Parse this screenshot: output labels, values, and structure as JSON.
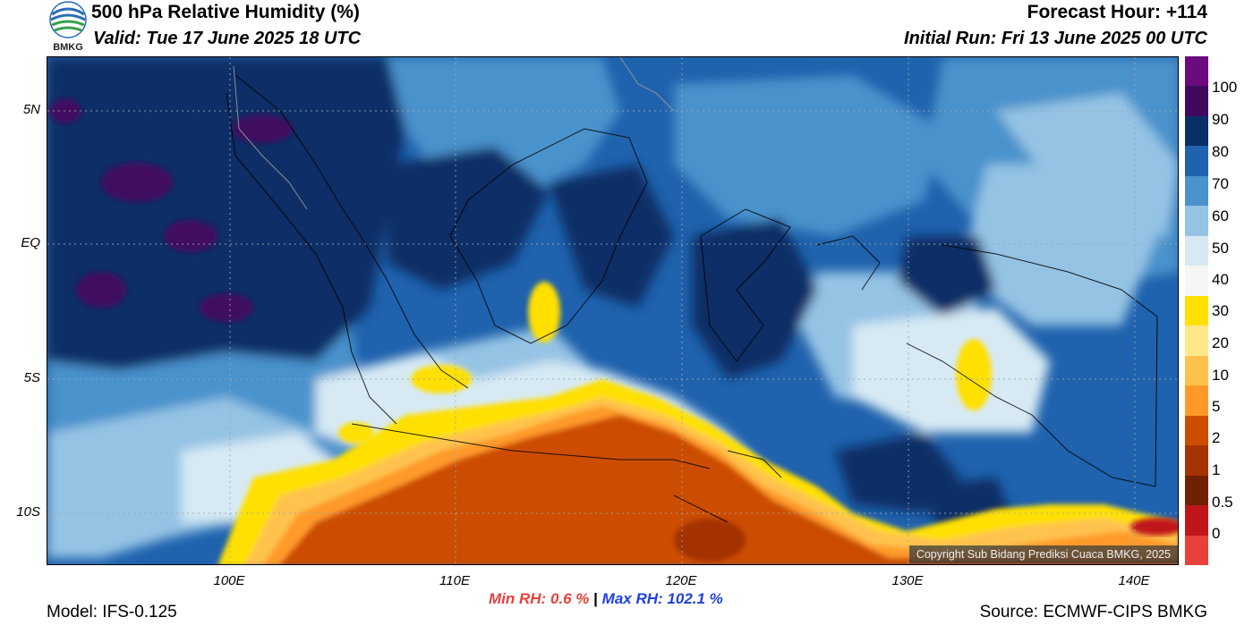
{
  "header": {
    "title": "500 hPa Relative Humidity (%)",
    "valid": "Valid: Tue 17 June 2025 18 UTC",
    "forecast_hour": "Forecast Hour: +114",
    "initial_run": "Initial Run: Fri 13 June 2025 00 UTC",
    "logo_text": "BMKG"
  },
  "map": {
    "lat_labels": [
      "5N",
      "EQ",
      "5S",
      "10S"
    ],
    "lon_labels": [
      "100E",
      "110E",
      "120E",
      "130E",
      "140E"
    ],
    "copyright": "Copyright Sub Bidang Prediksi Cuaca BMKG, 2025"
  },
  "colorbar": {
    "labels": [
      "100",
      "90",
      "80",
      "70",
      "60",
      "50",
      "40",
      "30",
      "20",
      "10",
      "5",
      "2",
      "1",
      "0.5",
      "0"
    ],
    "colors": [
      "#6b0b7f",
      "#3f0a5e",
      "#0a2f66",
      "#1f62ad",
      "#4a92cc",
      "#94c3e4",
      "#d7eaf4",
      "#f6f6f6",
      "#ffe000",
      "#ffe88a",
      "#ffc34d",
      "#ff9a2a",
      "#cc4d00",
      "#a33300",
      "#6e2200",
      "#c0161b",
      "#e8413b"
    ]
  },
  "stats": {
    "min_label": "Min RH:",
    "min_value": "0.6 %",
    "separator": "|",
    "max_label": "Max RH:",
    "max_value": "102.1 %",
    "min_color": "#e8413b",
    "max_color": "#1f3fe0"
  },
  "footer": {
    "model": "Model: IFS-0.125",
    "source": "Source: ECMWF-CIPS BMKG"
  }
}
